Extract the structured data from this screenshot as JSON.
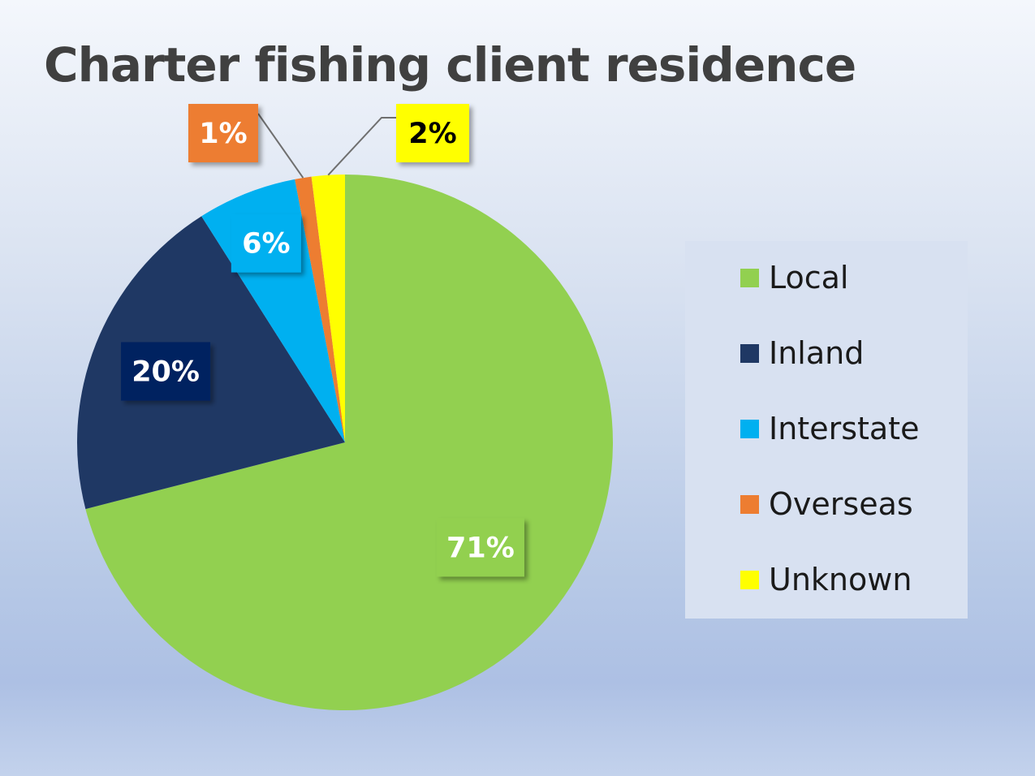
{
  "chart_data": {
    "type": "pie",
    "title": "Charter fishing client residence",
    "categories": [
      "Local",
      "Inland",
      "Interstate",
      "Overseas",
      "Unknown"
    ],
    "values": [
      71,
      20,
      6,
      1,
      2
    ],
    "data_labels": [
      "71%",
      "20%",
      "6%",
      "1%",
      "2%"
    ],
    "colors": [
      "#92d050",
      "#1f3864",
      "#00b0f0",
      "#ed7d31",
      "#ffff00"
    ],
    "label_text_colors": [
      "#ffffff",
      "#ffffff",
      "#ffffff",
      "#ffffff",
      "#000000"
    ],
    "label_box_colors": [
      "#92d050",
      "#002060",
      "#00b0f0",
      "#ed7d31",
      "#ffff00"
    ],
    "legend_position": "right",
    "start_angle_deg": 0,
    "direction": "clockwise"
  }
}
